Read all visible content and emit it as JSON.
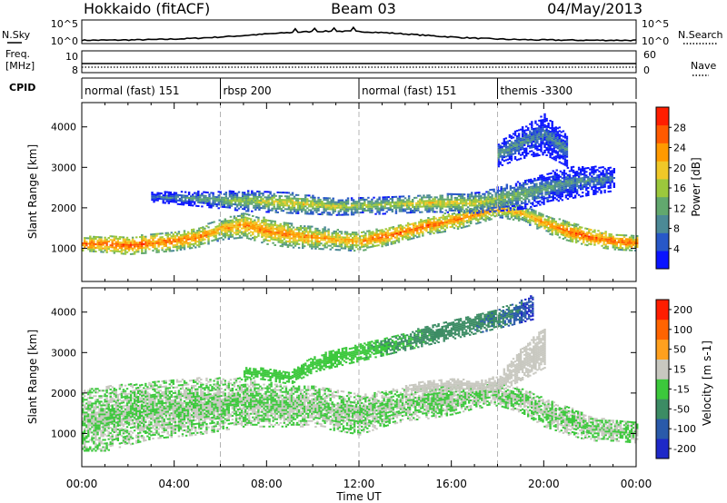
{
  "header": {
    "station": "Hokkaido (fitACF)",
    "beam": "Beam 03",
    "date": "04/May/2013"
  },
  "summary_panels": {
    "nsky": {
      "label": "N.Sky",
      "axis_ticks": [
        "10^5",
        "10^0"
      ]
    },
    "nsearch": {
      "label": "N.Search",
      "axis_ticks": [
        "10^5",
        "10^0"
      ]
    },
    "freq": {
      "label_line1": "Freq.",
      "label_line2": "[MHz]",
      "axis_ticks": [
        "10",
        "8"
      ]
    },
    "nave": {
      "label": "Nave",
      "axis_ticks": [
        "60",
        "0"
      ]
    },
    "cpid": {
      "label": "CPID",
      "segments": [
        {
          "name": "normal (fast) 151",
          "start_hour": 0,
          "end_hour": 6
        },
        {
          "name": "rbsp 200",
          "start_hour": 6,
          "end_hour": 12
        },
        {
          "name": "normal (fast) 151",
          "start_hour": 12,
          "end_hour": 18
        },
        {
          "name": "themis -3300",
          "start_hour": 18,
          "end_hour": 24
        }
      ]
    }
  },
  "x_axis": {
    "label": "Time UT",
    "ticks": [
      "00:00",
      "04:00",
      "08:00",
      "12:00",
      "16:00",
      "20:00",
      "00:00"
    ],
    "tick_hours": [
      0,
      4,
      8,
      12,
      16,
      20,
      24
    ]
  },
  "y_axis": {
    "label": "Slant Range [km]",
    "range_km": [
      180,
      4600
    ],
    "ticks": [
      1000,
      2000,
      3000,
      4000
    ]
  },
  "chart_data": [
    {
      "type": "heatmap",
      "panel": "power",
      "x_range_hours": [
        0,
        24
      ],
      "y_range_km": [
        180,
        4600
      ],
      "colorbar": {
        "label": "Power [dB]",
        "ticks": [
          "4",
          "8",
          "12",
          "16",
          "20",
          "24",
          "28"
        ],
        "range": [
          0,
          32
        ],
        "colors": [
          "#0a14ff",
          "#2858c8",
          "#4c8a96",
          "#62a86e",
          "#9cc83c",
          "#f0c828",
          "#ff9a00",
          "#ff5a00",
          "#ff1e00"
        ]
      },
      "bands": [
        {
          "name": "main scatter",
          "x": [
            0,
            1,
            2,
            3,
            4,
            5,
            6,
            7,
            8,
            9,
            10,
            11,
            12,
            13,
            14,
            15,
            16,
            17,
            18,
            19,
            20,
            21,
            22,
            23,
            24
          ],
          "center_km": [
            1100,
            1080,
            1050,
            1100,
            1150,
            1250,
            1450,
            1550,
            1400,
            1300,
            1250,
            1200,
            1150,
            1250,
            1400,
            1550,
            1650,
            1800,
            1950,
            1850,
            1600,
            1400,
            1250,
            1150,
            1100
          ],
          "half_width_km": [
            180,
            200,
            220,
            230,
            230,
            240,
            260,
            300,
            320,
            300,
            280,
            260,
            240,
            220,
            220,
            220,
            230,
            220,
            200,
            200,
            220,
            230,
            220,
            200,
            180
          ],
          "power_db": [
            26,
            27,
            27,
            26,
            25,
            25,
            22,
            24,
            25,
            24,
            24,
            22,
            24,
            26,
            26,
            26,
            25,
            24,
            23,
            22,
            24,
            26,
            27,
            27,
            26
          ]
        },
        {
          "name": "upper layer",
          "x": [
            3,
            5,
            7,
            9,
            11,
            13,
            15,
            17,
            19,
            21,
            23
          ],
          "center_km": [
            2250,
            2200,
            2150,
            2100,
            2000,
            2050,
            2100,
            2100,
            2300,
            2600,
            2700
          ],
          "half_width_km": [
            120,
            180,
            250,
            250,
            200,
            220,
            220,
            250,
            350,
            400,
            300
          ],
          "power_db": [
            8,
            12,
            16,
            20,
            18,
            16,
            20,
            18,
            14,
            10,
            8
          ]
        },
        {
          "name": "high range",
          "x": [
            18,
            19,
            20,
            21
          ],
          "center_km": [
            3300,
            3600,
            3800,
            3400
          ],
          "half_width_km": [
            300,
            400,
            500,
            400
          ],
          "power_db": [
            12,
            10,
            8,
            10
          ]
        }
      ]
    },
    {
      "type": "heatmap",
      "panel": "velocity",
      "x_range_hours": [
        0,
        24
      ],
      "y_range_km": [
        180,
        4600
      ],
      "colorbar": {
        "label": "Velocity [m s-1]",
        "ticks": [
          "200",
          "100",
          "50",
          "15",
          "-15",
          "-50",
          "-100",
          "-200"
        ],
        "range": [
          -250,
          250
        ],
        "colors": [
          "#1e28c8",
          "#2a5aaa",
          "#3c8c64",
          "#3cc83c",
          "#c8c8c0",
          "#ffa01e",
          "#ff6400",
          "#ff1e00"
        ]
      },
      "bands": [
        {
          "name": "ground scatter",
          "x": [
            0,
            1,
            2,
            3,
            4,
            5,
            6,
            7,
            8,
            9,
            10,
            11,
            12,
            13,
            14,
            15,
            16,
            17,
            18,
            19,
            20,
            21,
            22,
            23,
            24
          ],
          "center_km": [
            1300,
            1350,
            1450,
            1550,
            1600,
            1650,
            1700,
            1750,
            1700,
            1650,
            1650,
            1550,
            1450,
            1600,
            1700,
            1750,
            1800,
            1900,
            1950,
            1800,
            1500,
            1300,
            1100,
            1050,
            1000
          ],
          "half_width_km": [
            750,
            800,
            750,
            700,
            700,
            700,
            650,
            600,
            550,
            500,
            500,
            500,
            500,
            450,
            400,
            400,
            350,
            300,
            280,
            300,
            350,
            350,
            300,
            250,
            250
          ],
          "velocity": [
            0,
            0,
            0,
            0,
            0,
            0,
            0,
            0,
            0,
            0,
            0,
            0,
            0,
            0,
            0,
            0,
            0,
            0,
            0,
            0,
            0,
            0,
            0,
            0,
            0
          ]
        },
        {
          "name": "eastward flow",
          "x": [
            14,
            15,
            16,
            17,
            18,
            19,
            20
          ],
          "center_km": [
            2050,
            2150,
            2200,
            2150,
            2200,
            2700,
            3100
          ],
          "half_width_km": [
            120,
            150,
            150,
            120,
            200,
            400,
            500
          ],
          "velocity": [
            40,
            45,
            50,
            40,
            45,
            40,
            35
          ]
        },
        {
          "name": "westward flow",
          "x": [
            7,
            8,
            9,
            10,
            18.5,
            19.5
          ],
          "center_km": [
            2500,
            2450,
            2350,
            2700,
            3900,
            4100
          ],
          "half_width_km": [
            120,
            150,
            150,
            200,
            250,
            300
          ],
          "velocity": [
            -30,
            -35,
            -30,
            -25,
            -120,
            -200
          ]
        }
      ]
    }
  ]
}
